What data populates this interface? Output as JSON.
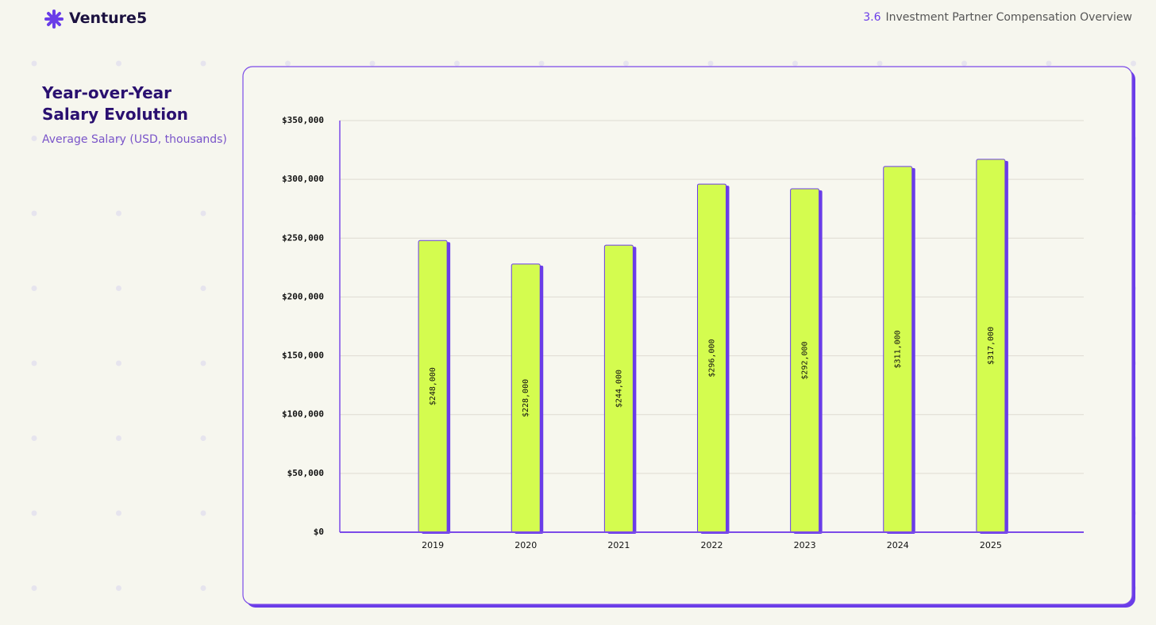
{
  "header": {
    "brand": "Venture5",
    "section_number": "3.6",
    "section_title": "Investment Partner Compensation Overview"
  },
  "chart_data": {
    "type": "bar",
    "title": "Year-over-Year Salary Evolution",
    "subtitle": "Average Salary (USD, thousands)",
    "categories": [
      "2019",
      "2020",
      "2021",
      "2022",
      "2023",
      "2024",
      "2025"
    ],
    "values": [
      248000,
      228000,
      244000,
      296000,
      292000,
      311000,
      317000
    ],
    "value_labels": [
      "$248,000",
      "$228,000",
      "$244,000",
      "$296,000",
      "$292,000",
      "$311,000",
      "$317,000"
    ],
    "color": "#d4fc4f",
    "ylim": [
      0,
      350000
    ],
    "yticks": [
      {
        "value": 0,
        "label": "$0"
      },
      {
        "value": 50000,
        "label": "$50,000"
      },
      {
        "value": 100000,
        "label": "$100,000"
      },
      {
        "value": 150000,
        "label": "$150,000"
      },
      {
        "value": 200000,
        "label": "$200,000"
      },
      {
        "value": 250000,
        "label": "$250,000"
      },
      {
        "value": 300000,
        "label": "$300,000"
      },
      {
        "value": 350000,
        "label": "$350,000"
      }
    ],
    "grid": true
  }
}
